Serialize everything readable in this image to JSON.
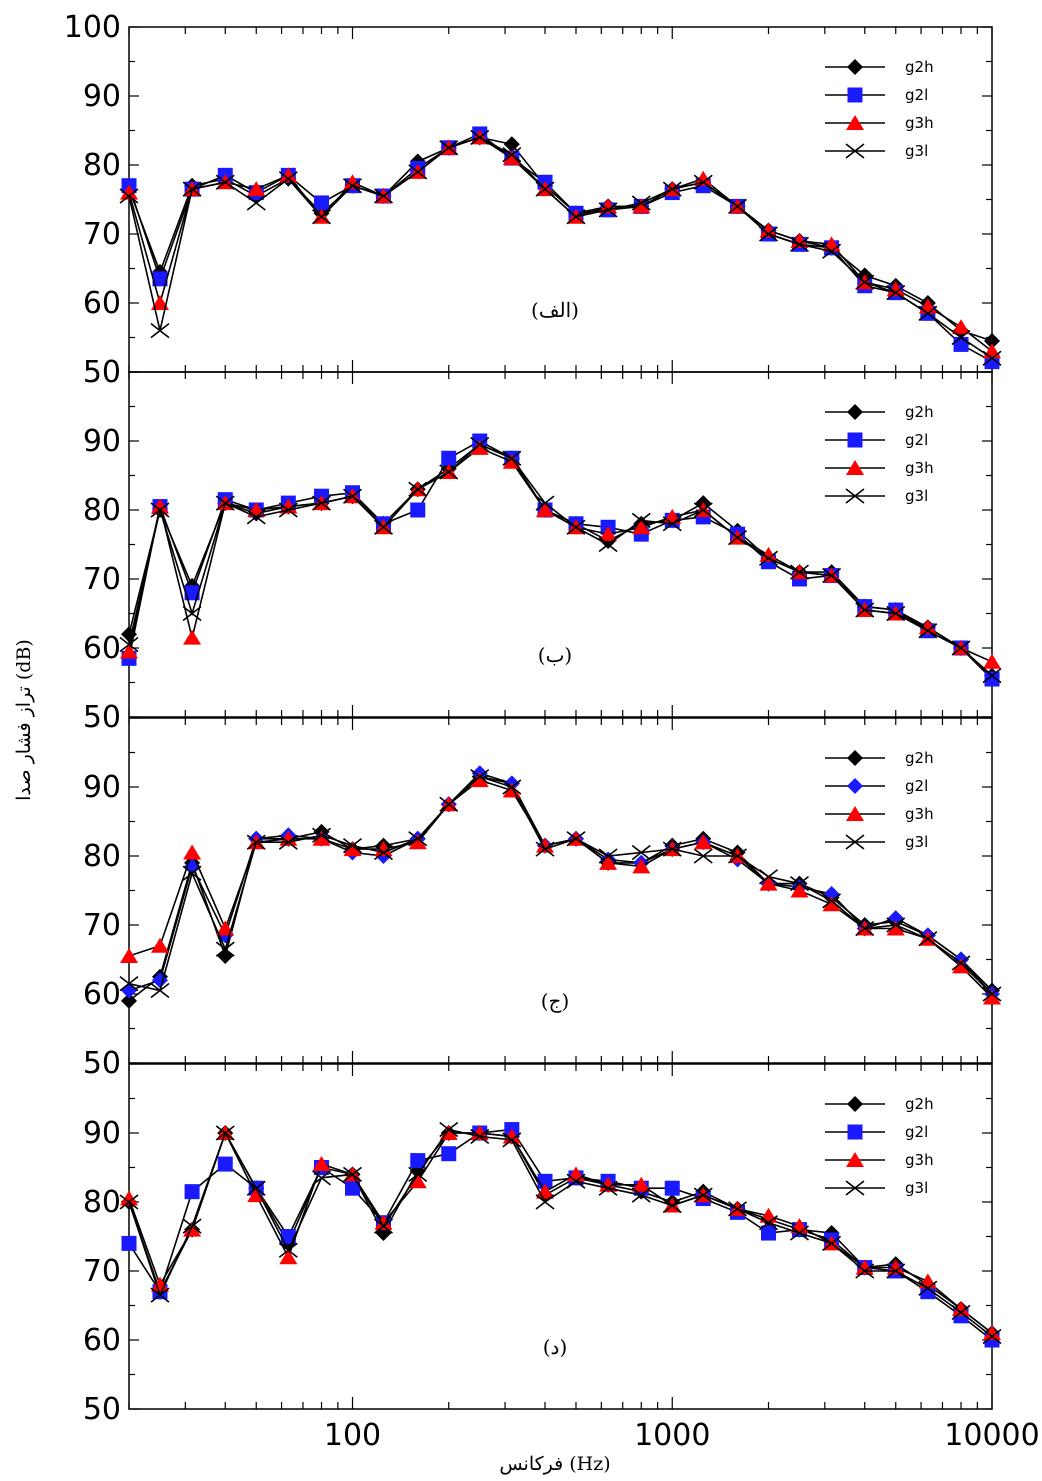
{
  "chart_data": {
    "type": "line",
    "x_scale": "log",
    "xlim": [
      20,
      10000
    ],
    "ylim": [
      50,
      100
    ],
    "xlabel": "فرکانس (Hz)",
    "ylabel": "تراز فشار صدا (dB)",
    "x_tick_labels": [
      "100",
      "1000",
      "10000"
    ],
    "y_tick_labels": [
      "50",
      "60",
      "70",
      "80",
      "90",
      "100"
    ],
    "x": [
      20,
      25,
      31.5,
      40,
      50,
      63,
      80,
      100,
      125,
      160,
      200,
      250,
      315,
      400,
      500,
      630,
      800,
      1000,
      1250,
      1600,
      2000,
      2500,
      3150,
      4000,
      5000,
      6300,
      8000,
      10000
    ],
    "series_colors": {
      "g2h": "#000000",
      "g2l": "#1a1aff",
      "g3h": "#ff0000",
      "g3l": "#000000"
    },
    "panels": [
      {
        "label": "(الف)",
        "legend": [
          "g2h",
          "g2l",
          "g3h",
          "g3l"
        ],
        "series": [
          {
            "name": "g2h",
            "marker": "diamond",
            "values": [
              76.5,
              64.5,
              77,
              78,
              75.5,
              78,
              73,
              77,
              75.5,
              80.5,
              82.5,
              84,
              83,
              77,
              73,
              74,
              74,
              76.5,
              77.5,
              74,
              70.5,
              69,
              68,
              64,
              62.5,
              60,
              56,
              54.5
            ]
          },
          {
            "name": "g2l",
            "marker": "square",
            "values": [
              77,
              63.5,
              76.5,
              78.5,
              76,
              78.5,
              74.5,
              77,
              75.5,
              79.5,
              82.5,
              84.5,
              81,
              77.5,
              73,
              73.5,
              74,
              76,
              77,
              74,
              70,
              68.5,
              68,
              62.5,
              61.5,
              58.5,
              54,
              51.5
            ]
          },
          {
            "name": "g3h",
            "marker": "triangle",
            "values": [
              76,
              60,
              76.5,
              77.5,
              76.5,
              78.5,
              72.5,
              77.5,
              75.5,
              79,
              82.5,
              84,
              81,
              76.5,
              72.5,
              74,
              74,
              76.5,
              78,
              74,
              70.5,
              69,
              68.5,
              63,
              62,
              59.5,
              56.5,
              53
            ]
          },
          {
            "name": "g3l",
            "marker": "x",
            "values": [
              75.5,
              56,
              76.5,
              77.5,
              74.5,
              78,
              72.5,
              77,
              75.5,
              79,
              82.5,
              84,
              81.5,
              76.5,
              72.5,
              73.5,
              74.5,
              76.5,
              77.5,
              74,
              70,
              68.5,
              67.5,
              63,
              61.5,
              58.5,
              55,
              52
            ]
          }
        ]
      },
      {
        "label": "(ب)",
        "legend": [
          "g2h",
          "g2l",
          "g3h",
          "g3l"
        ],
        "series": [
          {
            "name": "g2h",
            "marker": "diamond",
            "values": [
              62,
              80,
              69,
              81,
              79.5,
              80.5,
              81,
              82,
              78,
              83,
              86,
              89.5,
              87.5,
              80,
              78,
              75.5,
              78,
              78.5,
              81,
              77,
              73,
              71,
              71,
              66,
              65.5,
              63,
              60,
              56
            ]
          },
          {
            "name": "g2l",
            "marker": "square",
            "values": [
              58.5,
              80.5,
              68,
              81.5,
              80,
              81,
              82,
              82.5,
              78,
              80,
              87.5,
              90,
              87.5,
              80,
              78,
              77.5,
              76.5,
              78.5,
              79,
              76.5,
              72.5,
              70,
              70.5,
              66,
              65.5,
              62.5,
              60,
              55.5
            ]
          },
          {
            "name": "g3h",
            "marker": "triangle",
            "values": [
              59.5,
              80.5,
              61.5,
              81,
              80,
              80.5,
              81,
              82,
              77.5,
              83,
              85.5,
              89,
              87,
              80,
              77.5,
              76.5,
              77.5,
              79,
              80,
              76,
              73.5,
              71,
              70.5,
              65.5,
              65,
              63,
              60,
              58
            ]
          },
          {
            "name": "g3l",
            "marker": "x",
            "values": [
              60.5,
              80,
              65,
              81,
              79,
              80,
              81,
              82,
              77.5,
              83,
              85.5,
              89.5,
              87.5,
              81,
              77.5,
              75,
              78.5,
              78,
              80,
              76,
              73,
              71,
              70.5,
              65.5,
              65,
              62.5,
              60,
              56
            ]
          }
        ]
      },
      {
        "label": "(ج)",
        "legend": [
          "g2h",
          "g2l",
          "g3h",
          "g3l"
        ],
        "series": [
          {
            "name": "g2h",
            "marker": "diamond",
            "values": [
              59,
              62.5,
              79,
              65.5,
              82.5,
              82.5,
              83.5,
              81,
              81.5,
              82.5,
              87.5,
              91.5,
              90.5,
              81.5,
              82.5,
              79,
              79,
              81.5,
              82.5,
              80.5,
              76,
              76,
              74,
              70,
              70.5,
              68.5,
              65,
              60.5
            ]
          },
          {
            "name": "g2l",
            "marker": "diamond",
            "values": [
              60.5,
              62,
              78.5,
              68.5,
              82.5,
              83,
              82.5,
              80.5,
              80,
              82.5,
              87.5,
              92,
              90.5,
              81.5,
              82.5,
              79.5,
              79,
              81,
              82,
              79.5,
              76,
              75.5,
              74.5,
              69.5,
              71,
              68.5,
              65,
              60
            ]
          },
          {
            "name": "g3h",
            "marker": "triangle",
            "values": [
              65.5,
              67,
              80.5,
              69.5,
              82,
              82.5,
              82.5,
              81,
              81,
              82,
              87.5,
              91,
              89.5,
              81.5,
              82.5,
              79,
              78.5,
              81,
              82,
              80,
              76,
              75,
              73,
              69.5,
              69.5,
              68,
              64,
              59.5
            ]
          },
          {
            "name": "g3l",
            "marker": "x",
            "values": [
              61.5,
              60.5,
              77.5,
              66.5,
              82,
              82,
              83,
              81.5,
              80.5,
              82.5,
              87.5,
              91.5,
              90,
              81,
              82.5,
              80,
              80.5,
              81,
              80,
              80,
              77,
              76,
              73.5,
              69.5,
              70,
              68,
              64.5,
              60
            ]
          }
        ]
      },
      {
        "label": "(د)",
        "legend": [
          "g2h",
          "g2l",
          "g3h",
          "g3l"
        ],
        "series": [
          {
            "name": "g2h",
            "marker": "diamond",
            "values": [
              80,
              67,
              76,
              90,
              82,
              74,
              85,
              84,
              75.5,
              84.5,
              90,
              90,
              89.5,
              81,
              83.5,
              82.5,
              81.5,
              80,
              81.5,
              79,
              77.5,
              76,
              75.5,
              70.5,
              71,
              68,
              64.5,
              61
            ]
          },
          {
            "name": "g2l",
            "marker": "square",
            "values": [
              74,
              67,
              81.5,
              85.5,
              82,
              75,
              85,
              82,
              77,
              86,
              87,
              90,
              90.5,
              83,
              83.5,
              83,
              82,
              82,
              80.5,
              78.5,
              75.5,
              76,
              74.5,
              70.5,
              70,
              67,
              63.5,
              60
            ]
          },
          {
            "name": "g3h",
            "marker": "triangle",
            "values": [
              80.5,
              68,
              76,
              90,
              81,
              72,
              85.5,
              84,
              77,
              83,
              90,
              90,
              89.5,
              81.5,
              84,
              82.5,
              82.5,
              79.5,
              81,
              79,
              78,
              76.5,
              74,
              70.5,
              70.5,
              68.5,
              64.5,
              61
            ]
          },
          {
            "name": "g3l",
            "marker": "x",
            "values": [
              80,
              66.5,
              76.5,
              90,
              82,
              73,
              83.5,
              84,
              76.5,
              84,
              90.5,
              89.5,
              89,
              80,
              83,
              82,
              81,
              79.5,
              81,
              79,
              77,
              75.5,
              74,
              70,
              70,
              67.5,
              64,
              60.5
            ]
          }
        ]
      }
    ]
  }
}
